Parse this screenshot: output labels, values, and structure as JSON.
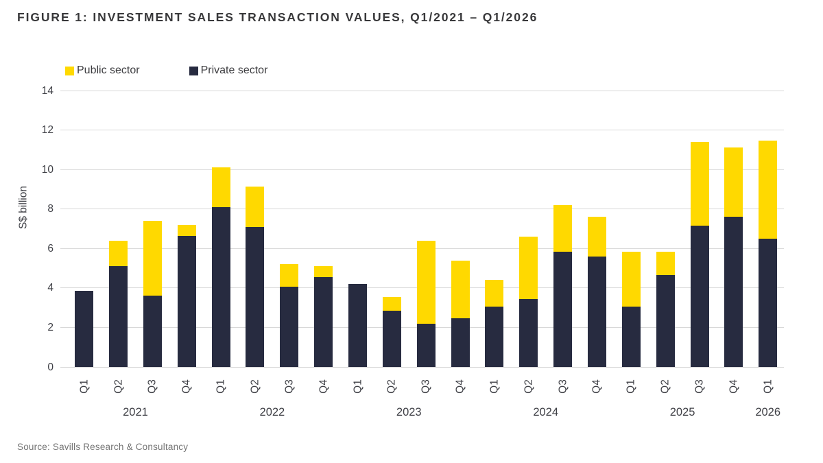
{
  "figure": {
    "title": "FIGURE 1: INVESTMENT SALES TRANSACTION VALUES, Q1/2021 – Q1/2026",
    "source": "Source: Savills Research & Consultancy"
  },
  "colors": {
    "public_sector": "#ffd900",
    "private_sector": "#272b40",
    "gridline": "#d8d8d8",
    "title_text": "#38383a",
    "axis_text": "#3f4046",
    "source_text": "#737373"
  },
  "chart_data": {
    "type": "bar",
    "stacked": true,
    "title": "FIGURE 1: INVESTMENT SALES TRANSACTION VALUES, Q1/2021 – Q1/2026",
    "xlabel": "",
    "ylabel": "S$ billion",
    "ylim": [
      0,
      14
    ],
    "yticks": [
      0,
      2,
      4,
      6,
      8,
      10,
      12,
      14
    ],
    "grid": "horizontal",
    "legend_position": "top-left",
    "legend": [
      {
        "label": "Public sector",
        "color": "#ffd900"
      },
      {
        "label": "Private sector",
        "color": "#272b40"
      }
    ],
    "categories": [
      "Q1",
      "Q2",
      "Q3",
      "Q4",
      "Q1",
      "Q2",
      "Q3",
      "Q4",
      "Q1",
      "Q2",
      "Q3",
      "Q4",
      "Q1",
      "Q2",
      "Q3",
      "Q4",
      "Q1",
      "Q2",
      "Q3",
      "Q4",
      "Q1"
    ],
    "year_groups": [
      {
        "label": "2021",
        "start": 0,
        "count": 4
      },
      {
        "label": "2022",
        "start": 4,
        "count": 4
      },
      {
        "label": "2023",
        "start": 8,
        "count": 4
      },
      {
        "label": "2024",
        "start": 12,
        "count": 4
      },
      {
        "label": "2025",
        "start": 16,
        "count": 4
      },
      {
        "label": "2026",
        "start": 20,
        "count": 1
      }
    ],
    "series": [
      {
        "name": "Private sector",
        "color": "#272b40",
        "values": [
          3.85,
          5.1,
          3.6,
          6.65,
          8.1,
          7.1,
          4.05,
          4.55,
          4.2,
          2.85,
          2.2,
          2.45,
          3.05,
          3.45,
          5.85,
          5.6,
          3.05,
          4.65,
          7.15,
          7.6,
          6.5
        ]
      },
      {
        "name": "Public sector",
        "color": "#ffd900",
        "values": [
          0,
          1.3,
          3.8,
          0.55,
          2.0,
          2.05,
          1.15,
          0.55,
          0,
          0.7,
          4.2,
          2.95,
          1.35,
          3.15,
          2.35,
          2.0,
          2.8,
          1.2,
          4.25,
          3.5,
          4.95
        ]
      }
    ],
    "totals": [
      3.85,
      6.4,
      7.4,
      7.2,
      10.1,
      9.15,
      5.2,
      5.1,
      4.2,
      3.55,
      6.4,
      5.4,
      4.4,
      6.6,
      8.2,
      7.6,
      5.85,
      5.85,
      11.4,
      11.1,
      11.45
    ]
  }
}
